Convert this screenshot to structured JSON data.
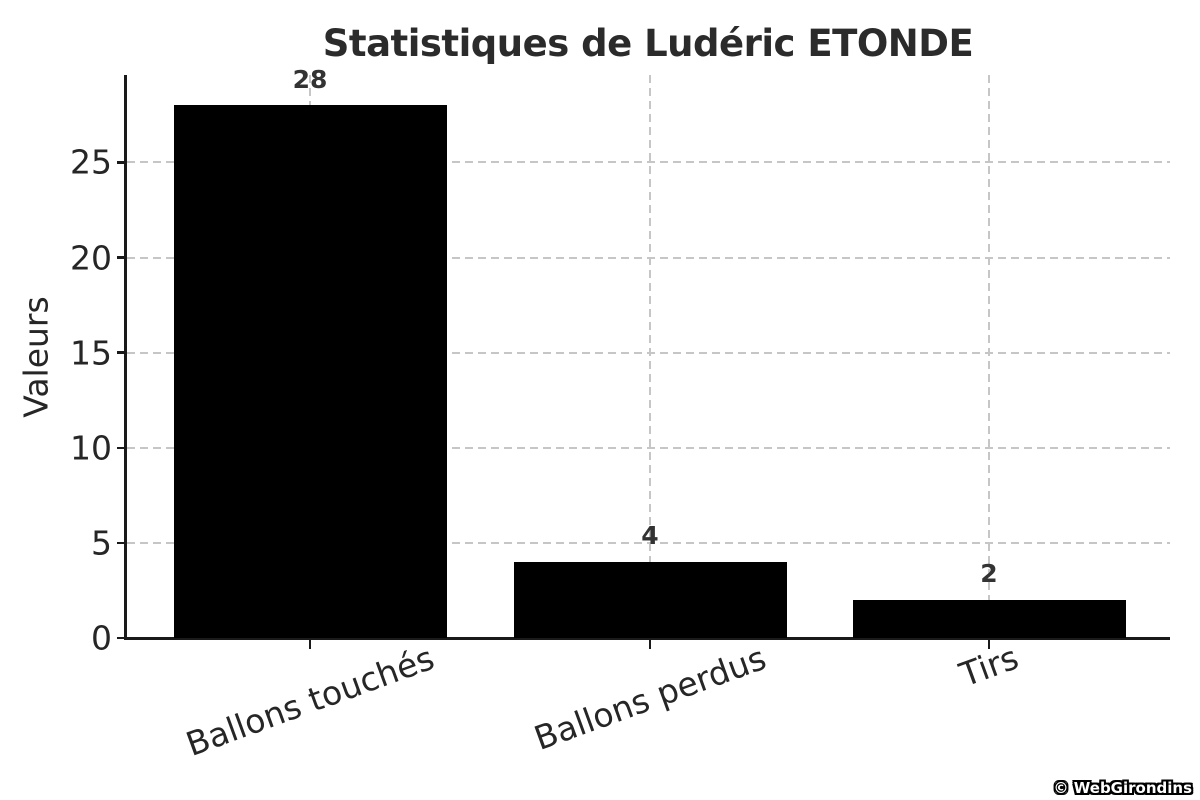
{
  "chart_data": {
    "type": "bar",
    "title": "Statistiques de Ludéric ETONDE",
    "xlabel": "",
    "ylabel": "Valeurs",
    "categories": [
      "Ballons touchés",
      "Ballons perdus",
      "Tirs"
    ],
    "values": [
      28,
      4,
      2
    ],
    "value_labels": [
      "28",
      "4",
      "2"
    ],
    "yticks": [
      0,
      5,
      10,
      15,
      20,
      25
    ],
    "ylim": [
      0,
      29.6
    ],
    "grid": "dashed",
    "legend_position": "none",
    "bar_color": "#000000"
  },
  "watermark": {
    "text": "© WebGirondins"
  },
  "colors": {
    "background": "#ffffff",
    "bar": "#000000",
    "spine": "#1a1a1a",
    "grid": "#c6c6c6",
    "tick_text": "#262626",
    "title_text": "#2b2b2b",
    "value_label_text": "#333333"
  }
}
